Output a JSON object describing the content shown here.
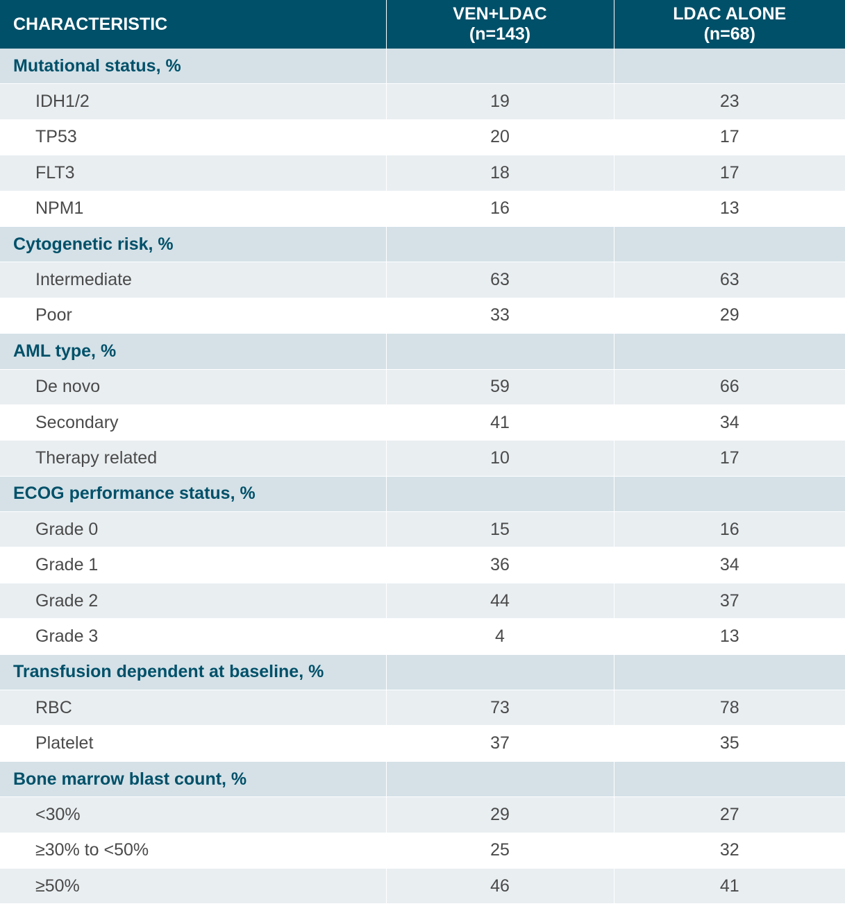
{
  "header": {
    "characteristic": "CHARACTERISTIC",
    "col1_line1": "VEN+LDAC",
    "col1_line2": "(n=143)",
    "col2_line1": "LDAC ALONE",
    "col2_line2": "(n=68)"
  },
  "sections": [
    {
      "title": "Mutational status, %",
      "rows": [
        {
          "label": "IDH1/2",
          "ven": "19",
          "ldac": "23"
        },
        {
          "label": "TP53",
          "ven": "20",
          "ldac": "17"
        },
        {
          "label": "FLT3",
          "ven": "18",
          "ldac": "17"
        },
        {
          "label": "NPM1",
          "ven": "16",
          "ldac": "13"
        }
      ]
    },
    {
      "title": "Cytogenetic risk, %",
      "rows": [
        {
          "label": "Intermediate",
          "ven": "63",
          "ldac": "63"
        },
        {
          "label": "Poor",
          "ven": "33",
          "ldac": "29"
        }
      ]
    },
    {
      "title": "AML type, %",
      "rows": [
        {
          "label": "De novo",
          "ven": "59",
          "ldac": "66"
        },
        {
          "label": "Secondary",
          "ven": "41",
          "ldac": "34"
        },
        {
          "label": "Therapy related",
          "ven": "10",
          "ldac": "17"
        }
      ]
    },
    {
      "title": "ECOG performance status, %",
      "rows": [
        {
          "label": "Grade 0",
          "ven": "15",
          "ldac": "16"
        },
        {
          "label": "Grade 1",
          "ven": "36",
          "ldac": "34"
        },
        {
          "label": "Grade 2",
          "ven": "44",
          "ldac": "37"
        },
        {
          "label": "Grade 3",
          "ven": "4",
          "ldac": "13"
        }
      ]
    },
    {
      "title": "Transfusion dependent at baseline, %",
      "rows": [
        {
          "label": "RBC",
          "ven": "73",
          "ldac": "78"
        },
        {
          "label": "Platelet",
          "ven": "37",
          "ldac": "35"
        }
      ]
    },
    {
      "title": "Bone marrow blast count, %",
      "rows": [
        {
          "label": "<30%",
          "ven": "29",
          "ldac": "27"
        },
        {
          "label": "≥30% to <50%",
          "ven": "25",
          "ldac": "32"
        },
        {
          "label": "≥50%",
          "ven": "46",
          "ldac": "41"
        }
      ]
    }
  ]
}
